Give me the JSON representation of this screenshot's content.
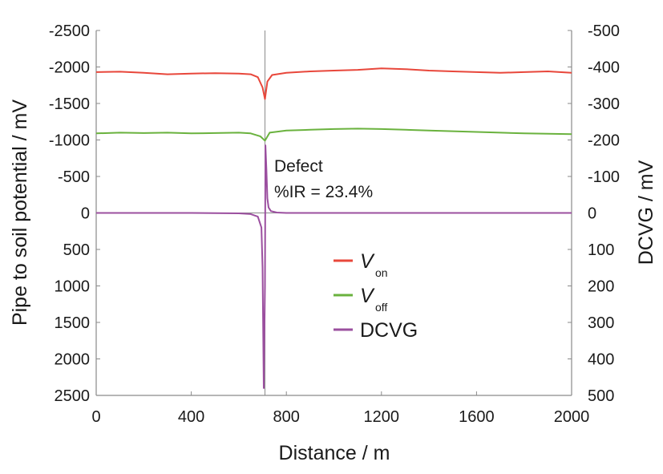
{
  "chart_data": {
    "type": "line",
    "xlabel": "Distance / m",
    "ylabel": "Pipe to soil potential / mV",
    "y2label": "DCVG / mV",
    "xlim": [
      0,
      2000
    ],
    "ylim": [
      -2500,
      2500
    ],
    "y2lim": [
      -500,
      500
    ],
    "y_inverted": true,
    "y2_inverted": true,
    "grid": false,
    "legend_position": "center-right",
    "x_ticks": [
      "0",
      "400",
      "800",
      "1200",
      "1600",
      "2000"
    ],
    "y_ticks": [
      "-2500",
      "-2000",
      "-1500",
      "-1000",
      "-500",
      "0",
      "500",
      "1000",
      "1500",
      "2000",
      "2500"
    ],
    "y2_ticks": [
      "-500",
      "-400",
      "-300",
      "-200",
      "-100",
      "0",
      "100",
      "200",
      "300",
      "400",
      "500"
    ],
    "annotation": {
      "line1": "Defect",
      "line2": "%IR = 23.4%",
      "x": 710
    },
    "series": [
      {
        "name": "V",
        "subscript": "on",
        "color": "#e8473b",
        "axis": "left",
        "x": [
          0,
          100,
          200,
          300,
          400,
          500,
          600,
          650,
          680,
          700,
          710,
          720,
          740,
          800,
          900,
          1000,
          1100,
          1200,
          1300,
          1400,
          1500,
          1600,
          1700,
          1800,
          1900,
          2000
        ],
        "values": [
          -1930,
          -1935,
          -1920,
          -1900,
          -1910,
          -1915,
          -1910,
          -1900,
          -1860,
          -1720,
          -1560,
          -1800,
          -1890,
          -1920,
          -1940,
          -1950,
          -1960,
          -1980,
          -1970,
          -1950,
          -1940,
          -1930,
          -1920,
          -1930,
          -1940,
          -1920
        ]
      },
      {
        "name": "V",
        "subscript": "off",
        "color": "#6ab23e",
        "axis": "left",
        "x": [
          0,
          100,
          200,
          300,
          400,
          500,
          600,
          650,
          690,
          710,
          730,
          800,
          900,
          1000,
          1100,
          1200,
          1300,
          1400,
          1500,
          1600,
          1700,
          1800,
          1900,
          2000
        ],
        "values": [
          -1090,
          -1100,
          -1095,
          -1100,
          -1090,
          -1095,
          -1100,
          -1090,
          -1050,
          -990,
          -1100,
          -1130,
          -1140,
          -1150,
          -1155,
          -1150,
          -1140,
          -1130,
          -1120,
          -1110,
          -1100,
          -1090,
          -1085,
          -1080
        ]
      },
      {
        "name": "DCVG",
        "color": "#9b4f9f",
        "axis": "right",
        "x": [
          0,
          200,
          400,
          600,
          650,
          680,
          695,
          700,
          705,
          710,
          712,
          716,
          720,
          725,
          735,
          760,
          800,
          1000,
          1200,
          1400,
          1600,
          1800,
          2000
        ],
        "values": [
          0,
          0,
          0,
          1,
          3,
          10,
          40,
          150,
          480,
          200,
          -185,
          -120,
          -40,
          -15,
          -5,
          -1,
          0,
          0,
          0,
          0,
          0,
          0,
          0
        ]
      }
    ]
  }
}
